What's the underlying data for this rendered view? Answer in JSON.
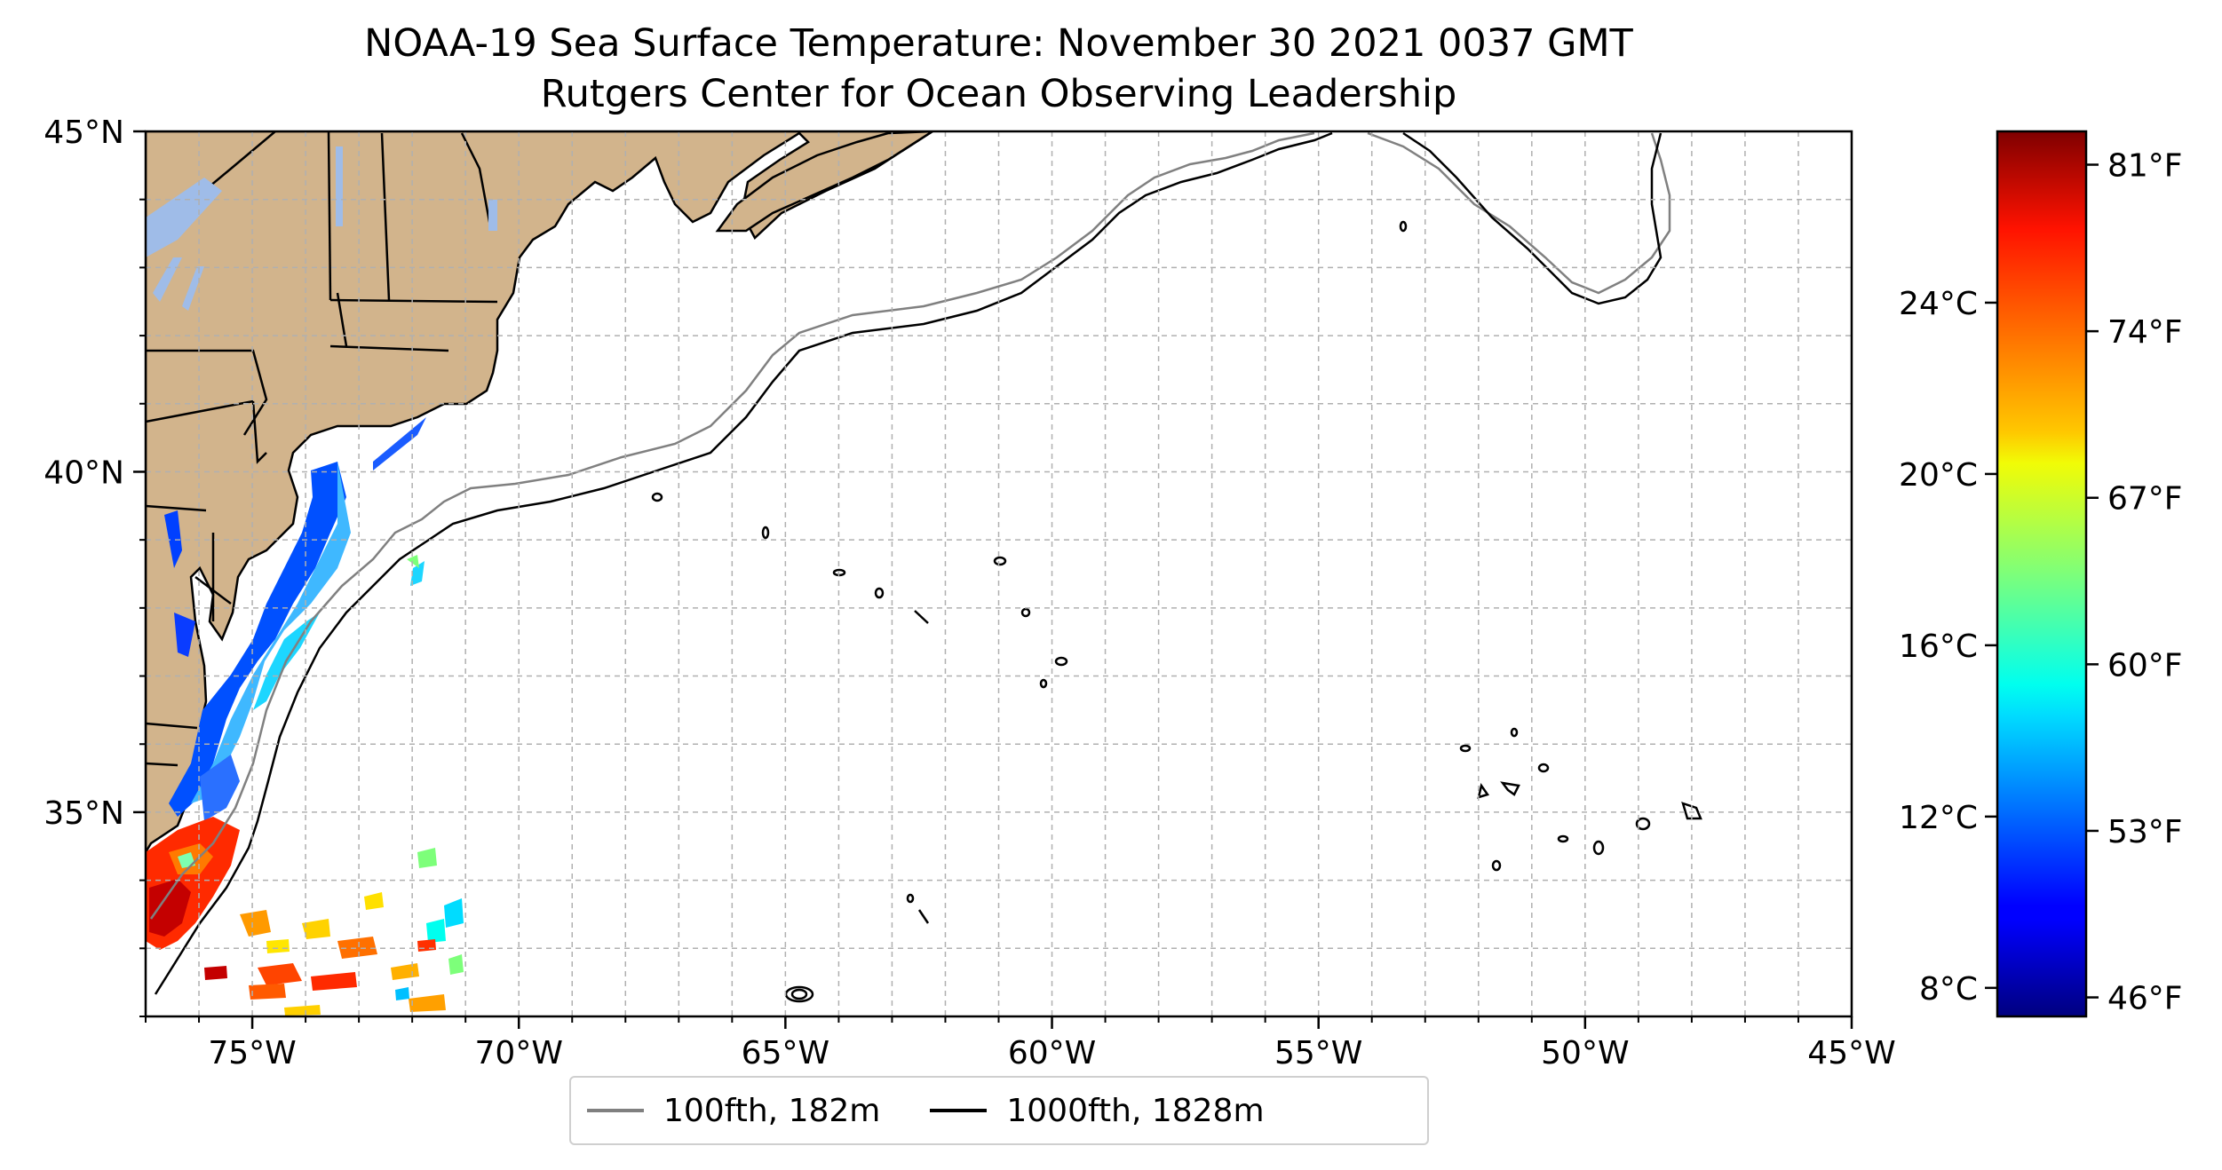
{
  "title_line1": "NOAA-19 Sea Surface Temperature: November 30 2021 0037 GMT",
  "title_line2": "Rutgers Center for Ocean Observing Leadership",
  "map": {
    "lon_range": [
      -77,
      -45
    ],
    "lat_range": [
      32,
      45
    ],
    "x_ticks": [
      {
        "value": -75,
        "label": "75°W"
      },
      {
        "value": -70,
        "label": "70°W"
      },
      {
        "value": -65,
        "label": "65°W"
      },
      {
        "value": -60,
        "label": "60°W"
      },
      {
        "value": -55,
        "label": "55°W"
      },
      {
        "value": -50,
        "label": "50°W"
      },
      {
        "value": -45,
        "label": "45°W"
      }
    ],
    "y_ticks": [
      {
        "value": 45,
        "label": "45°N"
      },
      {
        "value": 40,
        "label": "40°N"
      },
      {
        "value": 35,
        "label": "35°N"
      }
    ],
    "gridlines": true,
    "land_color": "#d2b48c",
    "lake_color": "#9fbce8"
  },
  "colorbar": {
    "colormap": "jet",
    "celsius_ticks": [
      {
        "value": 24,
        "label": "24°C"
      },
      {
        "value": 20,
        "label": "20°C"
      },
      {
        "value": 16,
        "label": "16°C"
      },
      {
        "value": 12,
        "label": "12°C"
      },
      {
        "value": 8,
        "label": "8°C"
      }
    ],
    "fahrenheit_ticks": [
      {
        "value": 81,
        "label": "81°F"
      },
      {
        "value": 74,
        "label": "74°F"
      },
      {
        "value": 67,
        "label": "67°F"
      },
      {
        "value": 60,
        "label": "60°F"
      },
      {
        "value": 53,
        "label": "53°F"
      },
      {
        "value": 46,
        "label": "46°F"
      }
    ]
  },
  "legend": {
    "items": [
      {
        "label": "100fth, 182m",
        "color": "#808080"
      },
      {
        "label": "1000fth, 1828m",
        "color": "#000000"
      }
    ]
  }
}
